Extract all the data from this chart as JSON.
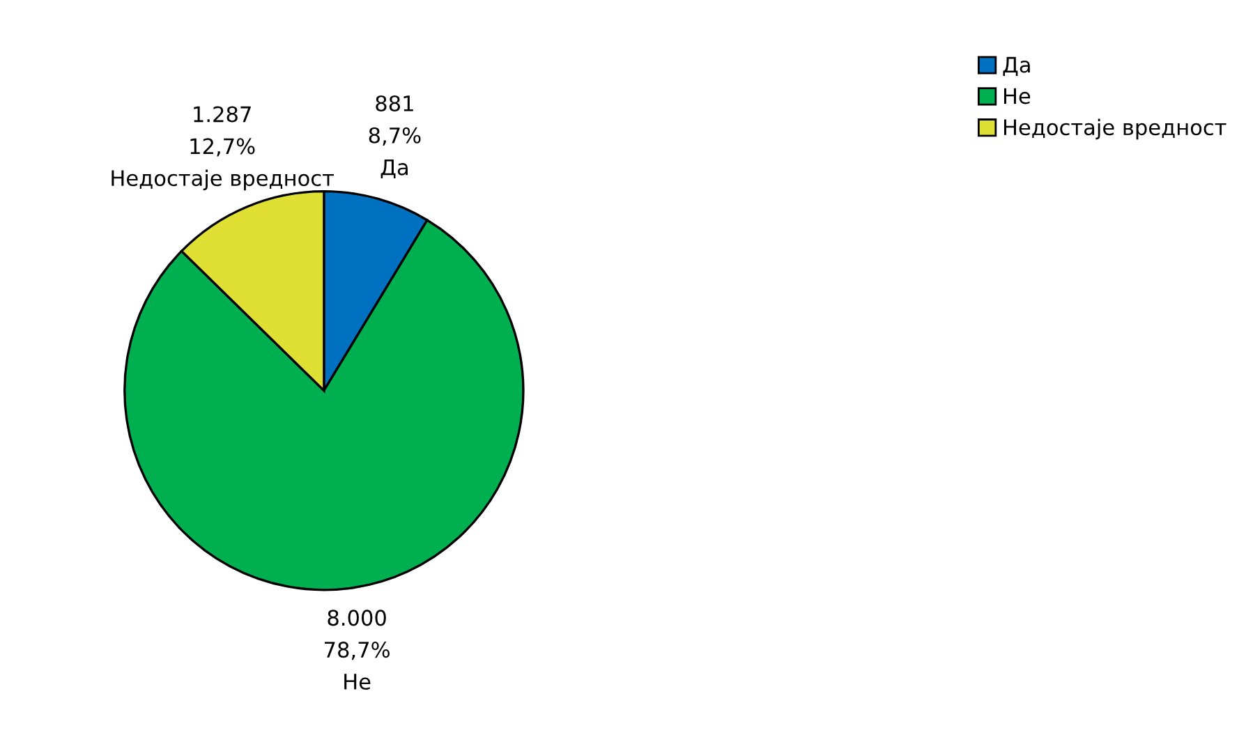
{
  "chart_data": {
    "type": "pie",
    "categories": [
      "Да",
      "Не",
      "Недостаје вредност"
    ],
    "values": [
      881,
      8000,
      1287
    ],
    "colors": [
      "#0070c0",
      "#00b050",
      "#e0e034"
    ],
    "value_labels": [
      "881\n8,7%",
      "8.000\n78,7%",
      "1.287\n12,7%"
    ],
    "legend": "top right"
  }
}
